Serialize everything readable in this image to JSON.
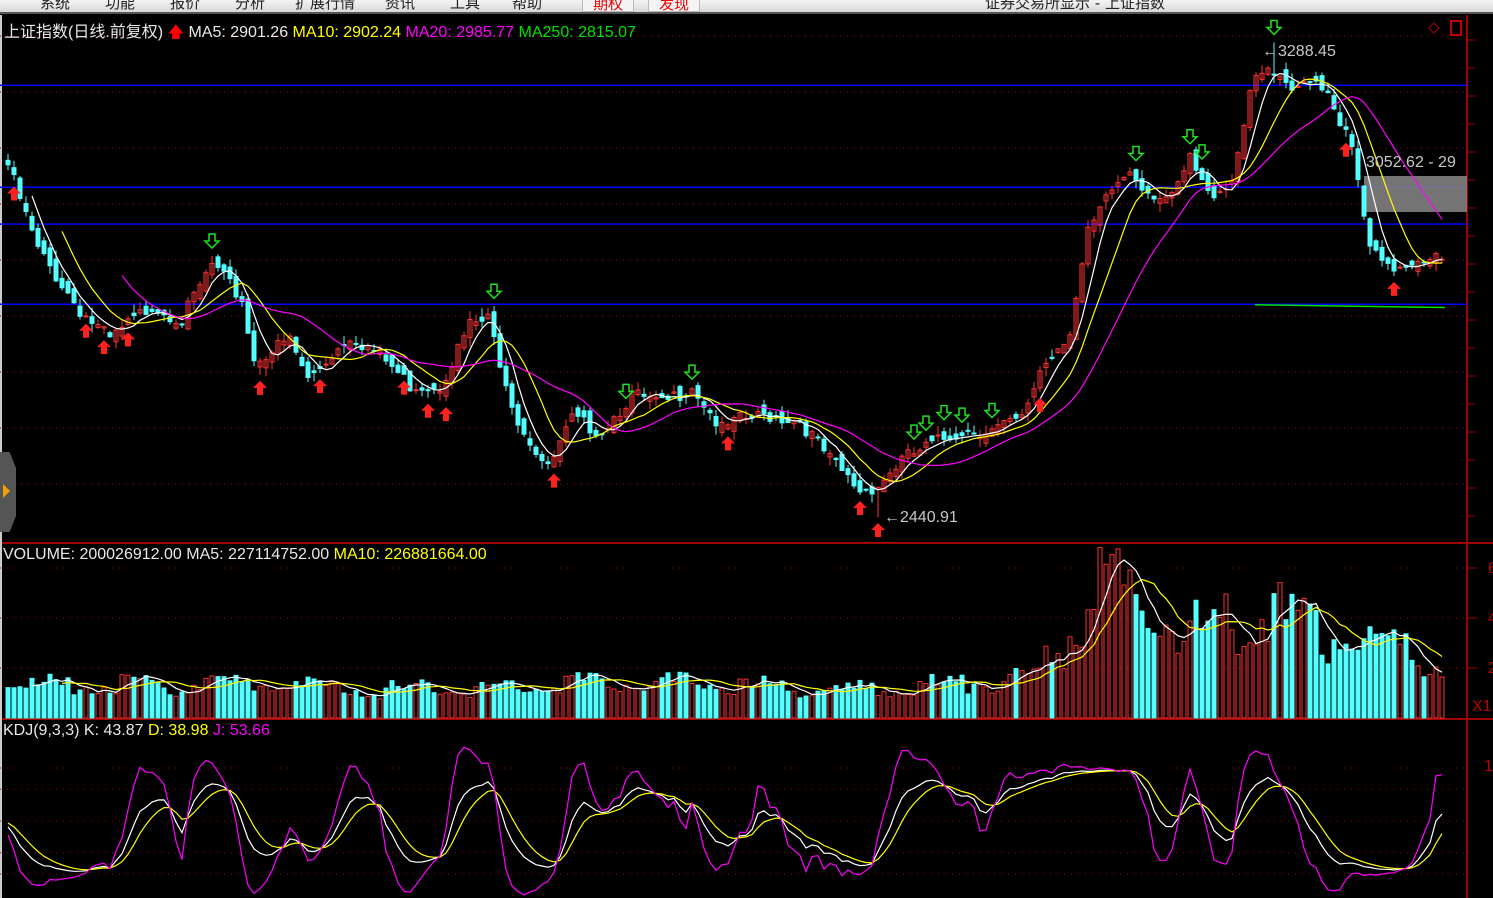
{
  "window": {
    "title": "证券交易所显示 - 上证指数",
    "menu": [
      "系统",
      "功能",
      "报价",
      "分析",
      "扩展行情",
      "资讯",
      "工具",
      "帮助"
    ],
    "menu_buttons": [
      "期权",
      "发现"
    ]
  },
  "main_legend": {
    "name": "上证指数(日线.前复权)",
    "ma5": "MA5: 2901.26",
    "ma10": "MA10: 2902.24",
    "ma20": "MA20: 2985.77",
    "ma250": "MA250: 2815.07"
  },
  "volume_legend": {
    "volume": "VOLUME: 200026912.00",
    "ma5": "MA5: 227114752.00",
    "ma10": "MA10: 226881664.00"
  },
  "kdj_legend": {
    "name": "KDJ(9,3,3)",
    "k": "K: 43.87",
    "d": "D: 38.98",
    "j": "J: 53.66"
  },
  "annotations": {
    "high": "3288.45",
    "low": "2440.91",
    "range": "3052.62 - 29",
    "arrow": "←"
  },
  "axis": {
    "volume_ticks": [
      "6",
      "4",
      "2"
    ],
    "volume_unit": "X1",
    "kdj_ticks": [
      "1"
    ]
  },
  "colors": {
    "up": "#ff3232",
    "down": "#54ffff",
    "ma5": "#ffffff",
    "ma10": "#ffff00",
    "ma20": "#ff00ff",
    "ma250": "#00e000",
    "grid": "#a00000",
    "hline": "#0000ff"
  },
  "chart_data": [
    {
      "type": "candlestick",
      "series_name": "上证指数",
      "candles": 240,
      "close_anchors_idx": [
        0,
        5,
        12,
        17,
        24,
        29,
        34,
        39,
        41,
        47,
        50,
        57,
        62,
        67,
        72,
        77,
        80,
        85,
        90,
        94,
        99,
        104,
        109,
        114,
        119,
        122,
        127,
        132,
        137,
        142,
        145,
        149,
        154,
        159,
        164,
        169,
        172,
        177,
        180,
        184,
        187,
        190,
        194,
        197,
        200,
        204,
        207,
        210,
        214,
        217,
        220,
        224,
        227,
        230,
        234,
        237,
        239
      ],
      "close_anchors": [
        3070,
        2918,
        2811,
        2757,
        2820,
        2793,
        2891,
        2829,
        2721,
        2757,
        2686,
        2766,
        2730,
        2677,
        2677,
        2784,
        2793,
        2614,
        2525,
        2614,
        2596,
        2659,
        2641,
        2677,
        2596,
        2614,
        2623,
        2614,
        2543,
        2489,
        2498,
        2543,
        2570,
        2596,
        2596,
        2614,
        2704,
        2775,
        2945,
        3025,
        3061,
        3025,
        3007,
        3079,
        3016,
        3043,
        3204,
        3239,
        3195,
        3230,
        3204,
        3096,
        2918,
        2882,
        2900,
        2909,
        2896
      ],
      "high": 3288.45,
      "low": 2440.91,
      "ma250": 2815.07,
      "hlines": [
        3212,
        3030,
        2964,
        2821
      ],
      "buy_signals": [
        1,
        13,
        16,
        20,
        42,
        52,
        66,
        70,
        73,
        91,
        120,
        142,
        145,
        172,
        223,
        231
      ],
      "sell_signals": [
        34,
        81,
        103,
        114,
        151,
        153,
        156,
        159,
        164,
        188,
        197,
        199,
        211
      ]
    },
    {
      "type": "bar",
      "series_name": "VOLUME",
      "unit": "1e8",
      "anchors_idx": [
        0,
        20,
        40,
        60,
        80,
        100,
        120,
        140,
        160,
        170,
        176,
        180,
        184,
        190,
        200,
        210,
        220,
        230,
        239
      ],
      "anchors": [
        1.3,
        1.3,
        1.4,
        1.1,
        1.2,
        1.5,
        1.3,
        1.1,
        1.4,
        1.5,
        2.8,
        4.8,
        5.5,
        4.2,
        3.5,
        4.2,
        3.3,
        2.8,
        2.0
      ]
    },
    {
      "type": "line",
      "series_name": "KDJ",
      "params": [
        9,
        3,
        3
      ],
      "last": {
        "K": 43.87,
        "D": 38.98,
        "J": 53.66
      }
    }
  ]
}
